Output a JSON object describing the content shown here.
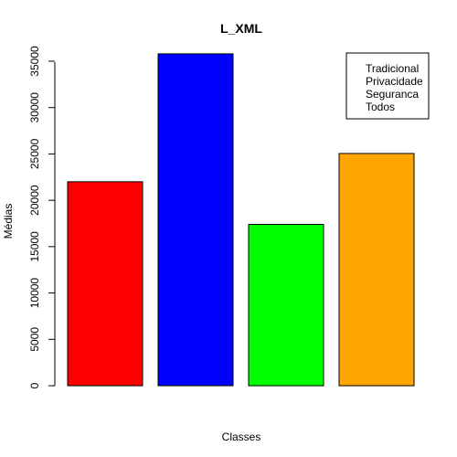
{
  "chart_data": {
    "type": "bar",
    "title": "L_XML",
    "xlabel": "Classes",
    "ylabel": "Médias",
    "ylim": [
      0,
      35000
    ],
    "yticks": [
      0,
      5000,
      10000,
      15000,
      20000,
      25000,
      30000,
      35000
    ],
    "series": [
      {
        "name": "Tradicional",
        "value": 22000,
        "color": "#ff0000"
      },
      {
        "name": "Privacidade",
        "value": 35800,
        "color": "#0000ff"
      },
      {
        "name": "Seguranca",
        "value": 17400,
        "color": "#00ff00"
      },
      {
        "name": "Todos",
        "value": 25050,
        "color": "#ffa500"
      }
    ],
    "legend_position": "top-right",
    "grid": false
  }
}
